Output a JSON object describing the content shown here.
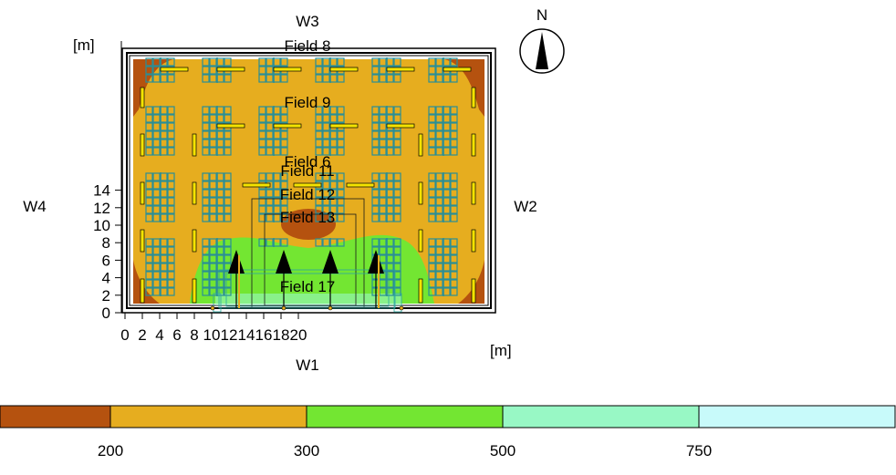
{
  "walls": {
    "north": "W3",
    "east": "W2",
    "south": "W1",
    "west": "W4"
  },
  "compass": {
    "label": "N"
  },
  "axes": {
    "x_unit": "[m]",
    "y_unit": "[m]",
    "x_ticks": [
      "0",
      "2",
      "4",
      "6",
      "8",
      "10",
      "12",
      "14",
      "16",
      "18",
      "20"
    ],
    "y_ticks": [
      "0",
      "2",
      "4",
      "6",
      "8",
      "10",
      "12",
      "14"
    ]
  },
  "fields": [
    {
      "label": "Field 8"
    },
    {
      "label": "Field 9"
    },
    {
      "label": "Field 6"
    },
    {
      "label": "Field 11"
    },
    {
      "label": "Field 12"
    },
    {
      "label": "Field 13"
    },
    {
      "label": "Field 17"
    }
  ],
  "legend": {
    "thresholds": [
      "200",
      "300",
      "500",
      "750"
    ],
    "colors": [
      "#b5520f",
      "#e6ad1f",
      "#73e632",
      "#98f8c5",
      "#c8fafa"
    ]
  }
}
